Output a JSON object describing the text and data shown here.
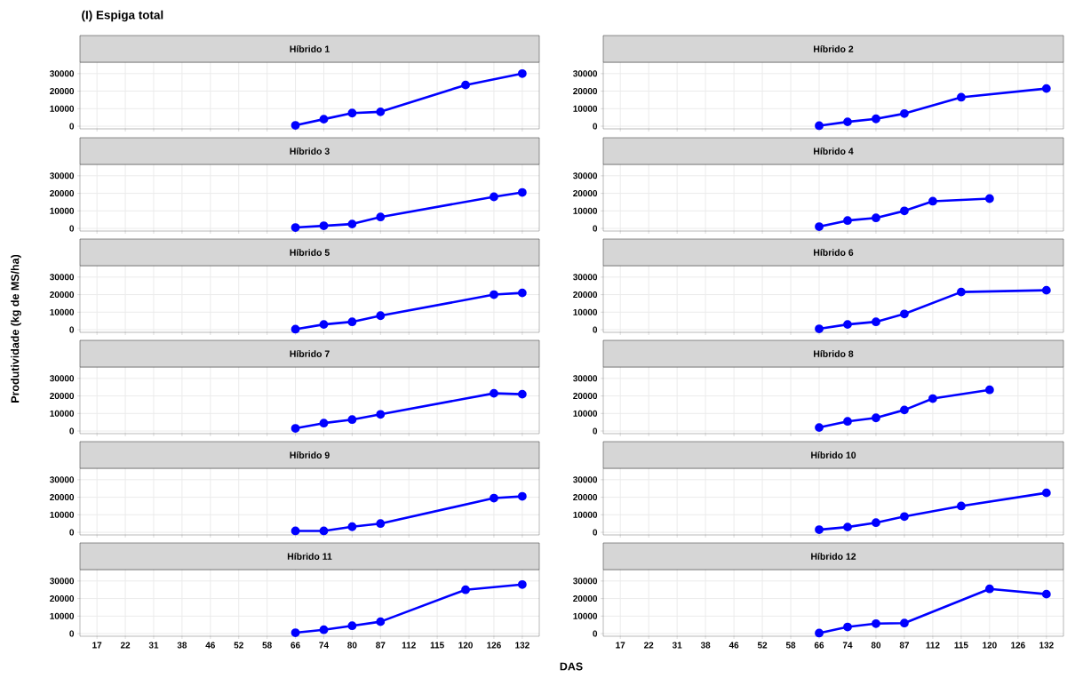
{
  "chart_data": [
    {
      "type": "line",
      "title": "Híbrido 1",
      "categories": [
        "17",
        "22",
        "31",
        "38",
        "46",
        "52",
        "58",
        "66",
        "74",
        "80",
        "87",
        "112",
        "115",
        "120",
        "126",
        "132"
      ],
      "values": [
        null,
        null,
        null,
        null,
        null,
        null,
        null,
        500,
        4000,
        7500,
        8200,
        null,
        null,
        23500,
        null,
        30000
      ],
      "color": "#0000ff",
      "ylim": [
        -1500,
        36500
      ],
      "yticks": [
        0,
        10000,
        20000,
        30000
      ],
      "grid": true,
      "marker": "circle",
      "tick_labels": "y",
      "annotations": [
        "(I) Espiga total"
      ],
      "xlabel": "DAS"
    },
    {
      "type": "line",
      "title": "Híbrido 2",
      "categories": [
        "17",
        "22",
        "31",
        "38",
        "46",
        "52",
        "58",
        "66",
        "74",
        "80",
        "87",
        "112",
        "115",
        "120",
        "126",
        "132"
      ],
      "values": [
        null,
        null,
        null,
        null,
        null,
        null,
        null,
        300,
        2500,
        4200,
        7200,
        null,
        16500,
        null,
        null,
        21500
      ],
      "color": "#0000ff",
      "ylim": [
        -1500,
        36500
      ],
      "yticks": [
        0,
        10000,
        20000,
        30000
      ],
      "grid": true,
      "marker": "circle",
      "tick_labels": "y"
    },
    {
      "type": "line",
      "title": "Híbrido 3",
      "categories": [
        "17",
        "22",
        "31",
        "38",
        "46",
        "52",
        "58",
        "66",
        "74",
        "80",
        "87",
        "112",
        "115",
        "120",
        "126",
        "132"
      ],
      "values": [
        null,
        null,
        null,
        null,
        null,
        null,
        null,
        500,
        1500,
        2500,
        6500,
        null,
        null,
        null,
        18000,
        20500
      ],
      "color": "#0000ff",
      "ylim": [
        -1500,
        36500
      ],
      "yticks": [
        0,
        10000,
        20000,
        30000
      ],
      "grid": true,
      "marker": "circle",
      "tick_labels": "y"
    },
    {
      "type": "line",
      "title": "Híbrido 4",
      "categories": [
        "17",
        "22",
        "31",
        "38",
        "46",
        "52",
        "58",
        "66",
        "74",
        "80",
        "87",
        "112",
        "115",
        "120",
        "126",
        "132"
      ],
      "values": [
        null,
        null,
        null,
        null,
        null,
        null,
        null,
        1000,
        4500,
        6000,
        10000,
        15500,
        null,
        17000,
        null,
        null
      ],
      "color": "#0000ff",
      "ylim": [
        -1500,
        36500
      ],
      "yticks": [
        0,
        10000,
        20000,
        30000
      ],
      "grid": true,
      "marker": "circle",
      "tick_labels": "y"
    },
    {
      "type": "line",
      "title": "Híbrido 5",
      "categories": [
        "17",
        "22",
        "31",
        "38",
        "46",
        "52",
        "58",
        "66",
        "74",
        "80",
        "87",
        "112",
        "115",
        "120",
        "126",
        "132"
      ],
      "values": [
        null,
        null,
        null,
        null,
        null,
        null,
        null,
        300,
        3000,
        4500,
        8000,
        null,
        null,
        null,
        20000,
        21000
      ],
      "color": "#0000ff",
      "ylim": [
        -1500,
        36500
      ],
      "yticks": [
        0,
        10000,
        20000,
        30000
      ],
      "grid": true,
      "marker": "circle",
      "tick_labels": "y",
      "ylabel": "Produtividade (kg de MS/ha)"
    },
    {
      "type": "line",
      "title": "Híbrido 6",
      "categories": [
        "17",
        "22",
        "31",
        "38",
        "46",
        "52",
        "58",
        "66",
        "74",
        "80",
        "87",
        "112",
        "115",
        "120",
        "126",
        "132"
      ],
      "values": [
        null,
        null,
        null,
        null,
        null,
        null,
        null,
        500,
        3000,
        4500,
        9000,
        null,
        21500,
        null,
        null,
        22500
      ],
      "color": "#0000ff",
      "ylim": [
        -1500,
        36500
      ],
      "yticks": [
        0,
        10000,
        20000,
        30000
      ],
      "grid": true,
      "marker": "circle",
      "tick_labels": "y"
    },
    {
      "type": "line",
      "title": "Híbrido 7",
      "categories": [
        "17",
        "22",
        "31",
        "38",
        "46",
        "52",
        "58",
        "66",
        "74",
        "80",
        "87",
        "112",
        "115",
        "120",
        "126",
        "132"
      ],
      "values": [
        null,
        null,
        null,
        null,
        null,
        null,
        null,
        1500,
        4500,
        6500,
        9500,
        null,
        null,
        null,
        21500,
        21000
      ],
      "color": "#0000ff",
      "ylim": [
        -1500,
        36500
      ],
      "yticks": [
        0,
        10000,
        20000,
        30000
      ],
      "grid": true,
      "marker": "circle",
      "tick_labels": "y"
    },
    {
      "type": "line",
      "title": "Híbrido 8",
      "categories": [
        "17",
        "22",
        "31",
        "38",
        "46",
        "52",
        "58",
        "66",
        "74",
        "80",
        "87",
        "112",
        "115",
        "120",
        "126",
        "132"
      ],
      "values": [
        null,
        null,
        null,
        null,
        null,
        null,
        null,
        2000,
        5500,
        7500,
        12000,
        18500,
        null,
        23500,
        null,
        null
      ],
      "color": "#0000ff",
      "ylim": [
        -1500,
        36500
      ],
      "yticks": [
        0,
        10000,
        20000,
        30000
      ],
      "grid": true,
      "marker": "circle",
      "tick_labels": "y"
    },
    {
      "type": "line",
      "title": "Híbrido 9",
      "categories": [
        "17",
        "22",
        "31",
        "38",
        "46",
        "52",
        "58",
        "66",
        "74",
        "80",
        "87",
        "112",
        "115",
        "120",
        "126",
        "132"
      ],
      "values": [
        null,
        null,
        null,
        null,
        null,
        null,
        null,
        800,
        800,
        3200,
        5000,
        null,
        null,
        null,
        19500,
        20500
      ],
      "color": "#0000ff",
      "ylim": [
        -1500,
        36500
      ],
      "yticks": [
        0,
        10000,
        20000,
        30000
      ],
      "grid": true,
      "marker": "circle",
      "tick_labels": "y"
    },
    {
      "type": "line",
      "title": "Híbrido 10",
      "categories": [
        "17",
        "22",
        "31",
        "38",
        "46",
        "52",
        "58",
        "66",
        "74",
        "80",
        "87",
        "112",
        "115",
        "120",
        "126",
        "132"
      ],
      "values": [
        null,
        null,
        null,
        null,
        null,
        null,
        null,
        1500,
        3000,
        5500,
        9000,
        null,
        15000,
        null,
        null,
        22500
      ],
      "color": "#0000ff",
      "ylim": [
        -1500,
        36500
      ],
      "yticks": [
        0,
        10000,
        20000,
        30000
      ],
      "grid": true,
      "marker": "circle",
      "tick_labels": "y"
    },
    {
      "type": "line",
      "title": "Híbrido 11",
      "categories": [
        "17",
        "22",
        "31",
        "38",
        "46",
        "52",
        "58",
        "66",
        "74",
        "80",
        "87",
        "112",
        "115",
        "120",
        "126",
        "132"
      ],
      "values": [
        null,
        null,
        null,
        null,
        null,
        null,
        null,
        500,
        2200,
        4500,
        6800,
        null,
        null,
        25000,
        null,
        28000
      ],
      "color": "#0000ff",
      "ylim": [
        -1500,
        36500
      ],
      "yticks": [
        0,
        10000,
        20000,
        30000
      ],
      "grid": true,
      "marker": "circle"
    },
    {
      "type": "line",
      "title": "Híbrido 12",
      "categories": [
        "17",
        "22",
        "31",
        "38",
        "46",
        "52",
        "58",
        "66",
        "74",
        "80",
        "87",
        "112",
        "115",
        "120",
        "126",
        "132"
      ],
      "values": [
        null,
        null,
        null,
        null,
        null,
        null,
        null,
        300,
        3800,
        5700,
        6000,
        null,
        null,
        25500,
        null,
        22500
      ],
      "color": "#0000ff",
      "ylim": [
        -1500,
        36500
      ],
      "yticks": [
        0,
        10000,
        20000,
        30000
      ],
      "grid": true,
      "marker": "circle"
    }
  ]
}
